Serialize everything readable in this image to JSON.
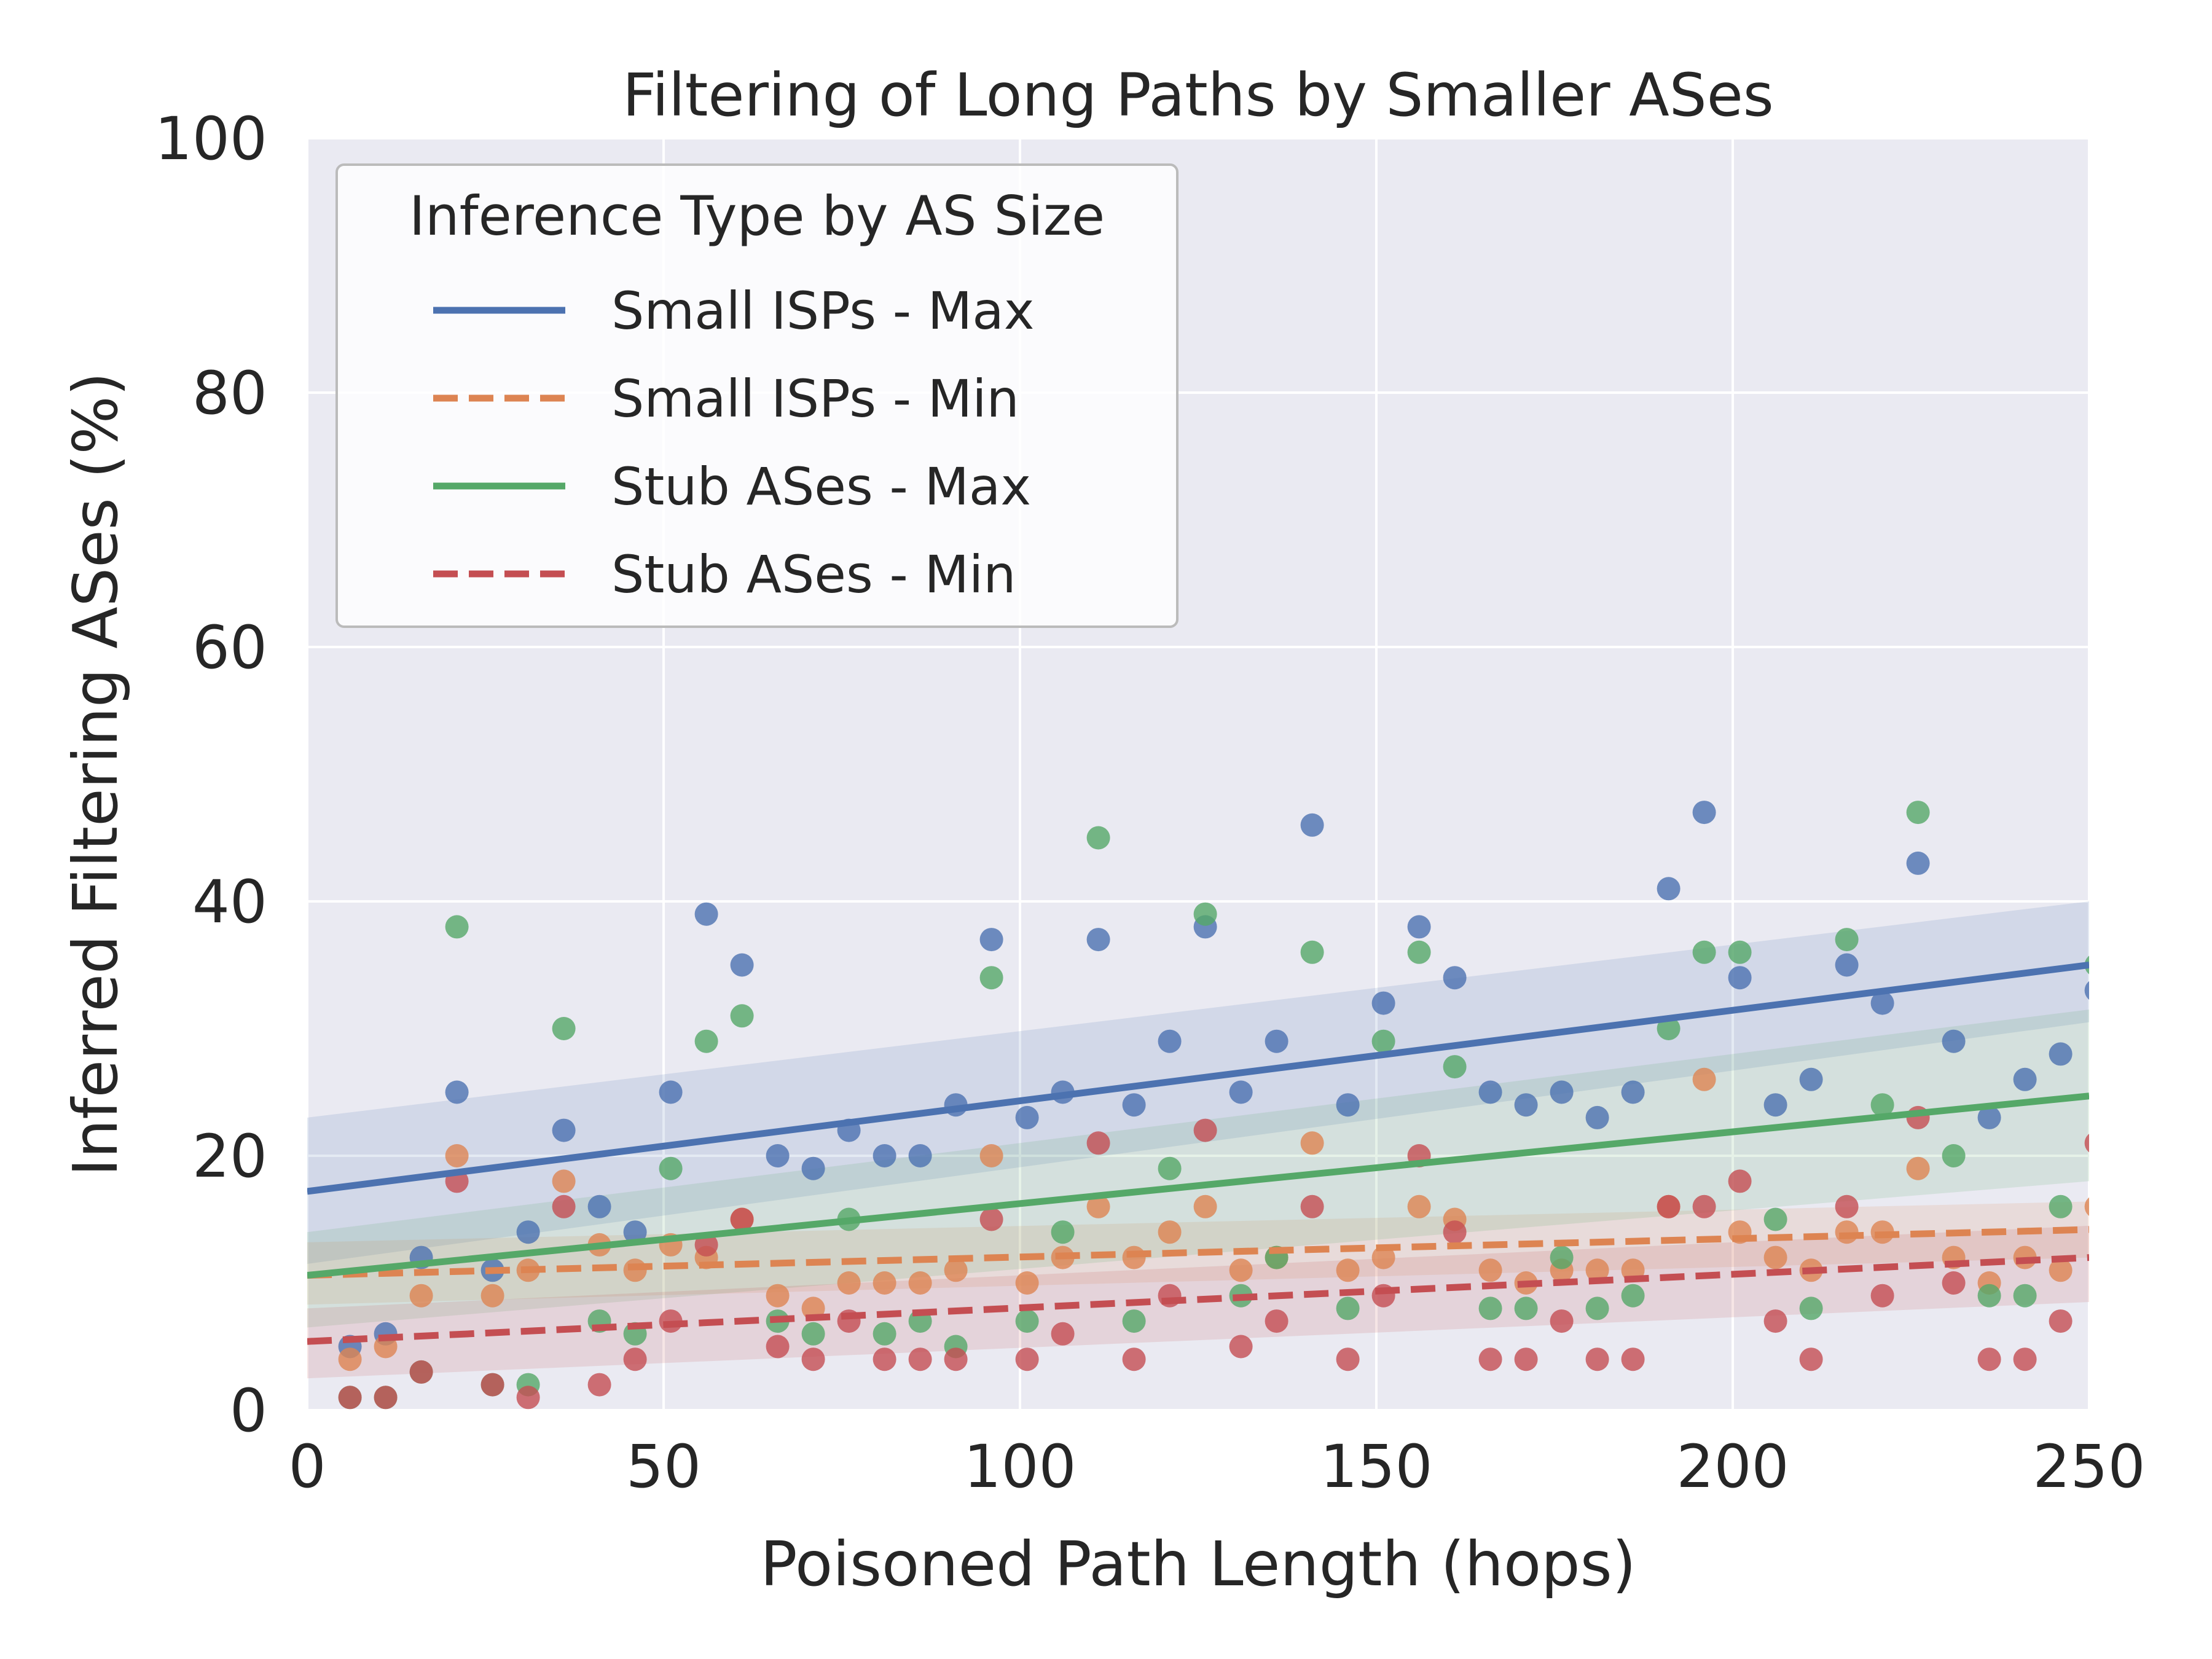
{
  "chart_data": {
    "type": "scatter",
    "title": "Filtering of Long Paths by Smaller ASes",
    "xlabel": "Poisoned Path Length (hops)",
    "ylabel": "Inferred Filtering ASes (%)",
    "xlim": [
      0,
      250
    ],
    "ylim": [
      0,
      100
    ],
    "xticks": [
      "0",
      "50",
      "100",
      "150",
      "200",
      "250"
    ],
    "yticks": [
      "0",
      "20",
      "40",
      "60",
      "80",
      "100"
    ],
    "grid": true,
    "legend": {
      "title": "Inference Type by AS Size",
      "position": "upper-left"
    },
    "x": [
      6,
      11,
      16,
      21,
      26,
      31,
      36,
      41,
      46,
      51,
      56,
      61,
      66,
      71,
      76,
      81,
      86,
      91,
      96,
      101,
      106,
      111,
      116,
      121,
      126,
      131,
      136,
      141,
      146,
      151,
      156,
      161,
      166,
      171,
      176,
      181,
      186,
      191,
      196,
      201,
      206,
      211,
      216,
      221,
      226,
      231,
      236,
      241,
      246,
      251
    ],
    "series": [
      {
        "name": "Small ISPs - Max",
        "color": "#4C72B0",
        "dash": "solid",
        "values": [
          5,
          6,
          12,
          25,
          11,
          14,
          22,
          16,
          14,
          25,
          39,
          35,
          20,
          19,
          22,
          20,
          20,
          24,
          37,
          23,
          25,
          37,
          24,
          29,
          38,
          25,
          29,
          46,
          24,
          32,
          38,
          34,
          25,
          24,
          25,
          23,
          25,
          41,
          47,
          34,
          24,
          26,
          35,
          32,
          43,
          29,
          23,
          26,
          28,
          33
        ],
        "fit": [
          17.2,
          35.0
        ],
        "band_start": [
          11.5,
          23.0
        ],
        "band_end": [
          30.5,
          40.0
        ]
      },
      {
        "name": "Small ISPs - Min",
        "color": "#DD8452",
        "dash": "dashed",
        "values": [
          4,
          5,
          9,
          20,
          9,
          11,
          18,
          13,
          11,
          13,
          12,
          15,
          9,
          8,
          10,
          10,
          10,
          11,
          20,
          10,
          12,
          16,
          12,
          14,
          16,
          11,
          12,
          21,
          11,
          12,
          16,
          15,
          11,
          10,
          11,
          11,
          11,
          16,
          26,
          14,
          12,
          11,
          14,
          14,
          19,
          12,
          10,
          12,
          11,
          16
        ],
        "fit": [
          10.6,
          14.2
        ],
        "band_start": [
          8.3,
          13.2
        ],
        "band_end": [
          12.0,
          16.4
        ]
      },
      {
        "name": "Stub ASes - Max",
        "color": "#55A868",
        "dash": "solid",
        "values": [
          1,
          1,
          3,
          38,
          2,
          2,
          30,
          7,
          6,
          19,
          29,
          31,
          7,
          6,
          15,
          6,
          7,
          5,
          34,
          7,
          14,
          45,
          7,
          19,
          39,
          9,
          12,
          36,
          8,
          29,
          36,
          27,
          8,
          8,
          12,
          8,
          9,
          30,
          36,
          36,
          15,
          8,
          37,
          24,
          47,
          20,
          9,
          9,
          16,
          35
        ],
        "fit": [
          10.6,
          24.7
        ],
        "band_start": [
          6.5,
          14.0
        ],
        "band_end": [
          18.0,
          31.5
        ]
      },
      {
        "name": "Stub ASes - Min",
        "color": "#C44E52",
        "dash": "dashed",
        "values": [
          1,
          1,
          3,
          18,
          2,
          1,
          16,
          2,
          4,
          7,
          13,
          15,
          5,
          4,
          7,
          4,
          4,
          4,
          15,
          4,
          6,
          21,
          4,
          9,
          22,
          5,
          7,
          16,
          4,
          9,
          20,
          14,
          4,
          4,
          7,
          4,
          4,
          16,
          16,
          18,
          7,
          4,
          16,
          9,
          23,
          10,
          4,
          4,
          7,
          21
        ],
        "fit": [
          5.4,
          12.0
        ],
        "band_start": [
          2.5,
          8.0
        ],
        "band_end": [
          8.5,
          14.5
        ]
      }
    ]
  }
}
